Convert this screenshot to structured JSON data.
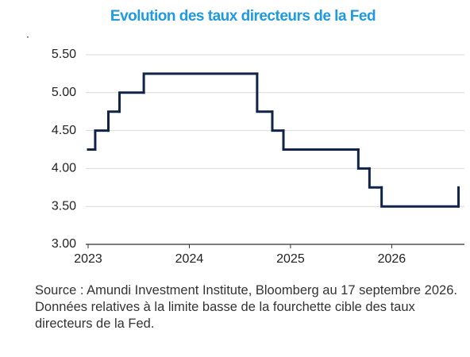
{
  "chart_data": {
    "type": "step",
    "title": "Evolution des taux directeurs de la Fed",
    "annotation": ".",
    "source": "Source : Amundi Investment Institute, Bloomberg au 17 septembre 2026. Données relatives à la limite basse de la fourchette cible des taux directeurs de la Fed.",
    "x": [
      2023,
      2023.07,
      2023.2,
      2023.31,
      2023.55,
      2024.67,
      2024.82,
      2024.93,
      2025.67,
      2025.78,
      2025.9,
      2026.66
    ],
    "series": [
      {
        "color": "#0f2448",
        "values": [
          4.25,
          4.5,
          4.75,
          5,
          5.25,
          4.75,
          4.5,
          4.25,
          4,
          3.75,
          3.5,
          3.75
        ]
      }
    ],
    "xlim": [
      2023,
      2026.75
    ],
    "xticks": [
      2023,
      2024,
      2025,
      2026
    ],
    "ylim": [
      3,
      5.5
    ],
    "yticks": [
      {
        "value": 3,
        "label": "3.00"
      },
      {
        "value": 3.5,
        "label": "3.50"
      },
      {
        "value": 4,
        "label": "4.00"
      },
      {
        "value": 4.5,
        "label": "4.50"
      },
      {
        "value": 5,
        "label": "5.00"
      },
      {
        "value": 5.5,
        "label": "5.50"
      }
    ],
    "grid": true
  }
}
